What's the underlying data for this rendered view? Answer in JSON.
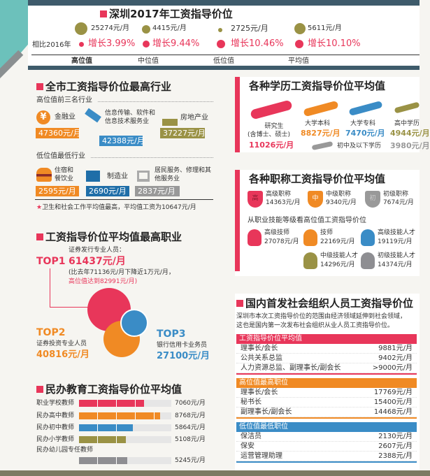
{
  "header": {
    "title": "深圳2017年工资指导价位",
    "compare_label": "相比2016年",
    "items": [
      {
        "label": "高位值",
        "value": "25274元/月",
        "growth": "增长3.99%"
      },
      {
        "label": "中位值",
        "value": "4415元/月",
        "growth": "增长9.44%"
      },
      {
        "label": "低位值",
        "value": "2725元/月",
        "growth": "增长10.46%"
      },
      {
        "label": "平均值",
        "value": "5611元/月",
        "growth": "增长10.10%"
      }
    ]
  },
  "industry": {
    "title": "全市工资指导价位最高行业",
    "high_label": "高位值前三名行业",
    "high": [
      {
        "name": "金融业",
        "value": "47360元/月",
        "icon": "yen-icon"
      },
      {
        "name": "信息传输、软件和信息技术服务业",
        "value": "42388元/月",
        "icon": "satellite-icon"
      },
      {
        "name": "房地产业",
        "value": "37227元/月",
        "icon": "building-icon"
      }
    ],
    "low_label": "低位值最低行业",
    "low": [
      {
        "name": "住宿和餐饮业",
        "value": "2595元/月",
        "icon": "burger-icon"
      },
      {
        "name": "制造业",
        "value": "2690元/月",
        "icon": "robot-arm-icon"
      },
      {
        "name": "居民服务、修理和其他服务业",
        "value": "2837元/月",
        "icon": "sewing-machine-icon"
      }
    ],
    "note": "卫生和社会工作平均值最高，平均值工资为10647元/月"
  },
  "occupation": {
    "title": "工资指导价位平均值最高职业",
    "top1": {
      "rank": "TOP1",
      "name": "证券发行专业人员：",
      "value": "61437元/月",
      "note1": "(比去年71136元/月下降近1万元/月，",
      "note2": "高位值达到82991元/月)"
    },
    "top2": {
      "rank": "TOP2",
      "name": "证券投资专业人员",
      "value": "40816元/月"
    },
    "top3": {
      "rank": "TOP3",
      "name": "银行信用卡业务员",
      "value": "27100元/月"
    }
  },
  "education_private": {
    "title": "民办教育工资指导价位平均值",
    "chart_data": {
      "type": "bar",
      "categories": [
        "职业学校教师",
        "民办高中教师",
        "民办初中教师",
        "民办小学教师",
        "民办幼儿园专任教师"
      ],
      "values": [
        7060,
        8768,
        5864,
        5108,
        5245
      ],
      "labels": [
        "7060元/月",
        "8768元/月",
        "5864元/月",
        "5108元/月",
        "5245元/月"
      ],
      "colors": [
        "#e8365a",
        "#f08a24",
        "#3a8cc6",
        "#9a9245",
        "#8e8e92"
      ],
      "xlim": [
        0,
        10000
      ]
    }
  },
  "degree": {
    "title": "各种学历工资指导价位平均值",
    "items": [
      {
        "name": "研究生",
        "sub": "(含博士、硕士)",
        "value": "11026元/月"
      },
      {
        "name": "大学本科",
        "value": "8827元/月"
      },
      {
        "name": "大学专科",
        "value": "7470元/月"
      },
      {
        "name": "高中学历",
        "value": "4944元/月"
      },
      {
        "name": "初中及以下学历",
        "value": "3980元/月"
      }
    ]
  },
  "title_rank": {
    "title": "各种职称工资指导价位平均值",
    "items": [
      {
        "name": "高级职称",
        "badge": "高",
        "value": "14363元/月"
      },
      {
        "name": "中级职称",
        "badge": "中",
        "value": "9340元/月"
      },
      {
        "name": "初级职称",
        "badge": "初",
        "value": "7674元/月"
      }
    ],
    "skill_title": "从职业技能等级看高位值工资指导价位",
    "skills": [
      {
        "name": "高级技师",
        "value": "27078元/月"
      },
      {
        "name": "技师",
        "value": "22169元/月"
      },
      {
        "name": "高级技能人才",
        "value": "19119元/月"
      },
      {
        "name": "中级技能人才",
        "value": "14296元/月"
      },
      {
        "name": "初级技能人才",
        "value": "14374元/月"
      }
    ]
  },
  "social": {
    "title": "国内首发社会组织人员工资指导价位",
    "desc1": "深圳市本次工资指导价位的范围由经济领域延伸到社会领域，",
    "desc2": "这也是国内第一次发布社会组织从业人员工资指导价位。",
    "tables": [
      {
        "header": "工资指导价位平均值",
        "color": "#e8365a",
        "rows": [
          [
            "理事长/会长",
            "9881元/月"
          ],
          [
            "公共关系总监",
            "9402元/月"
          ],
          [
            "人力资源总监、副理事长/副会长",
            ">9000元/月"
          ]
        ]
      },
      {
        "header": "高位值最高职位",
        "color": "#f08a24",
        "rows": [
          [
            "理事长/会长",
            "17769元/月"
          ],
          [
            "秘书长",
            "15400元/月"
          ],
          [
            "副理事长/副会长",
            "14468元/月"
          ]
        ]
      },
      {
        "header": "低位值最低职位",
        "color": "#3a8cc6",
        "rows": [
          [
            "保洁员",
            "2130元/月"
          ],
          [
            "保安",
            "2607元/月"
          ],
          [
            "运营管理助理",
            "2388元/月"
          ]
        ]
      }
    ]
  }
}
